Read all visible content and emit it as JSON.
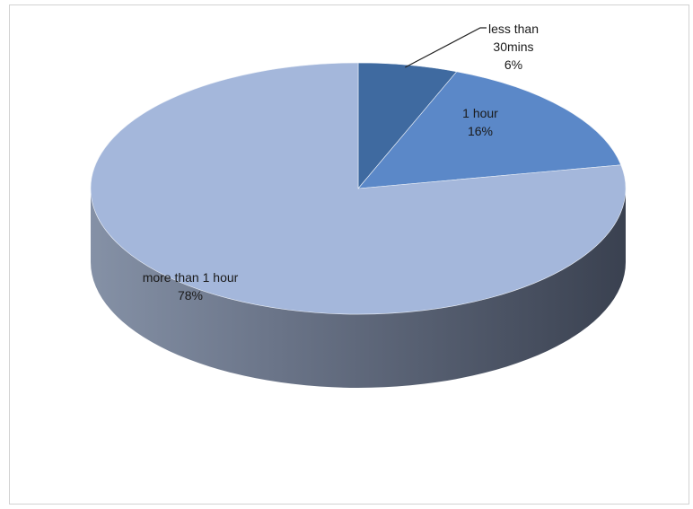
{
  "chart_data": {
    "type": "pie",
    "style": "3d",
    "title": "",
    "slices": [
      {
        "label": "less than 30mins",
        "label_lines": [
          "less than",
          "30mins"
        ],
        "value": 6,
        "value_label": "6%",
        "color": "#3f6aa0"
      },
      {
        "label": "1 hour",
        "label_lines": [
          "1 hour"
        ],
        "value": 16,
        "value_label": "16%",
        "color": "#5b88c8"
      },
      {
        "label": "more than 1 hour",
        "label_lines": [
          "more than 1 hour"
        ],
        "value": 78,
        "value_label": "78%",
        "color": "#a4b7db"
      }
    ],
    "legend": "none"
  }
}
